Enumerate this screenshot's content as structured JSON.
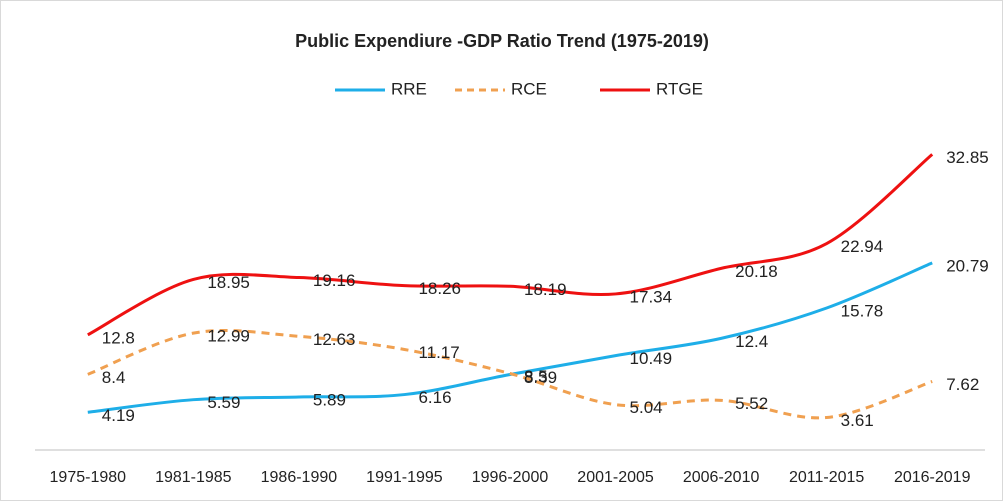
{
  "chart_data": {
    "type": "line",
    "title": "Public Expendiure -GDP Ratio Trend (1975-2019)",
    "categories": [
      "1975-1980",
      "1981-1985",
      "1986-1990",
      "1991-1995",
      "1996-2000",
      "2001-2005",
      "2006-2010",
      "2011-2015",
      "2016-2019"
    ],
    "series": [
      {
        "name": "RRE",
        "color": "#1eaee8",
        "values": [
          4.19,
          5.59,
          5.89,
          6.16,
          8.39,
          10.49,
          12.4,
          15.78,
          20.79
        ]
      },
      {
        "name": "RCE",
        "color": "#f0a050",
        "dashed": true,
        "values": [
          8.4,
          12.99,
          12.63,
          11.17,
          8.5,
          5.04,
          5.52,
          3.61,
          7.62
        ]
      },
      {
        "name": "RTGE",
        "color": "#ee1111",
        "values": [
          12.8,
          18.95,
          19.16,
          18.26,
          18.19,
          17.34,
          20.18,
          22.94,
          32.85
        ]
      }
    ],
    "ylim": [
      0,
      35
    ],
    "smooth": true,
    "legend": "top"
  }
}
